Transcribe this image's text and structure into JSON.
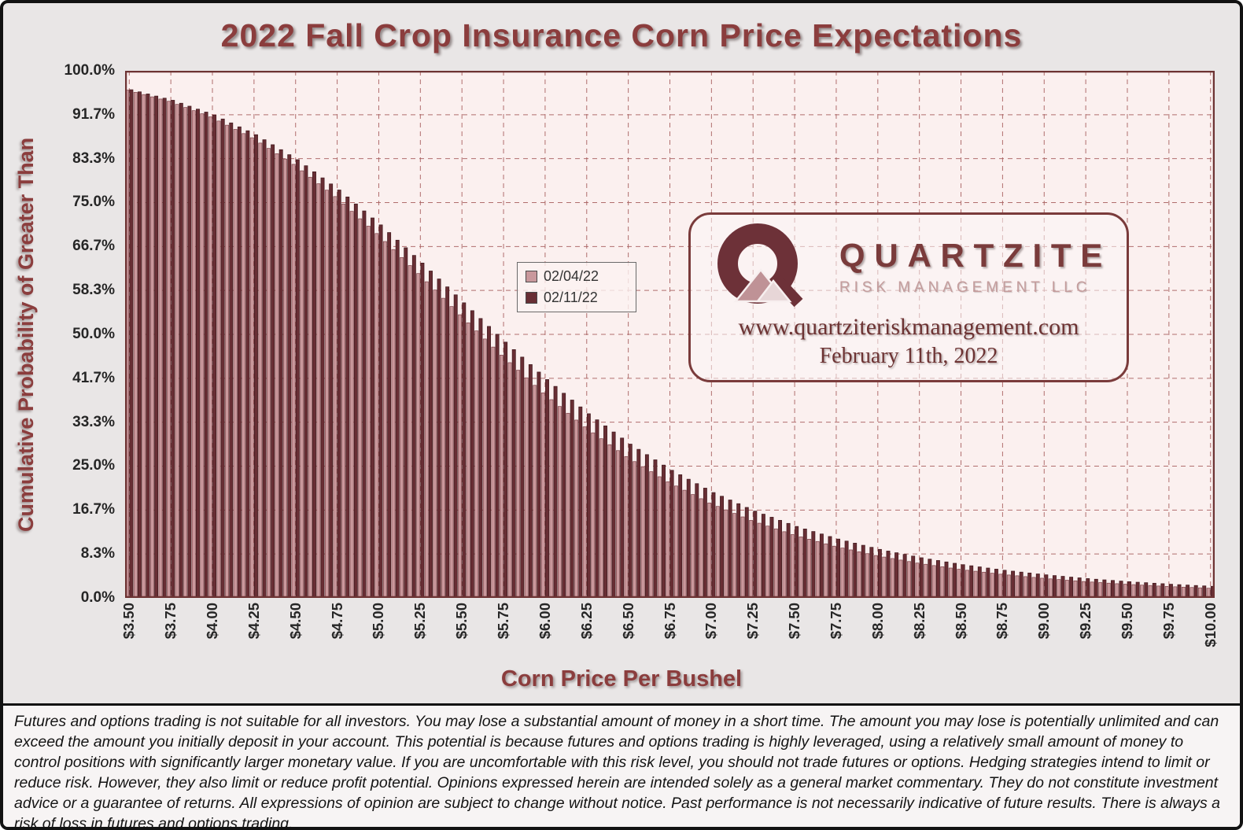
{
  "title": "2022 Fall Crop Insurance Corn Price Expectations",
  "y_axis_label": "Cumulative Probability of Greater Than",
  "x_axis_label": "Corn Price Per Bushel",
  "brand": {
    "name": "QUARTZITE",
    "subtitle": "RISK MANAGEMENT LLC",
    "website": "www.quartziteriskmanagement.com",
    "date": "February 11th, 2022"
  },
  "disclaimer": "Futures and options trading is not suitable for all investors. You may lose a substantial amount of money in a short time. The amount you may lose is potentially unlimited and can exceed the amount you initially deposit in your account. This potential is because futures and options trading is highly leveraged, using a relatively small amount of money to control positions with significantly larger monetary value. If you are uncomfortable with this risk level, you should not trade futures or options. Hedging strategies intend to limit or reduce risk. However, they also limit or reduce profit potential. Opinions expressed herein are intended solely as a general market commentary. They do not constitute investment advice or a guarantee of returns. All expressions of opinion are subject to change without notice. Past performance is not necessarily indicative of future results. There is always a risk of loss in futures and options trading.",
  "colors": {
    "maroon_accent": "#7a3b3b",
    "title_text": "#8b3d3d",
    "plot_background": "#fbf0ef",
    "gridline": "#a86060",
    "plot_border": "#6d3333",
    "frame_background": "#e9e6e6",
    "series_light": "#c9989c",
    "series_dark": "#682e34"
  },
  "chart_data": {
    "type": "bar",
    "title": "2022 Fall Crop Insurance Corn Price Expectations",
    "xlabel": "Corn Price Per Bushel",
    "ylabel": "Cumulative Probability of Greater Than",
    "ylim": [
      0,
      100
    ],
    "grid": "dashed, both axes",
    "legend_position": "inside plot, left of center",
    "x_start": 3.5,
    "x_step": 0.05,
    "x_end": 10.0,
    "x": [
      3.5,
      3.55,
      3.6,
      3.65,
      3.7,
      3.75,
      3.8,
      3.85,
      3.9,
      3.95,
      4,
      4.05,
      4.1,
      4.15,
      4.2,
      4.25,
      4.3,
      4.35,
      4.4,
      4.45,
      4.5,
      4.55,
      4.6,
      4.65,
      4.7,
      4.75,
      4.8,
      4.85,
      4.9,
      4.95,
      5,
      5.05,
      5.1,
      5.15,
      5.2,
      5.25,
      5.3,
      5.35,
      5.4,
      5.45,
      5.5,
      5.55,
      5.6,
      5.65,
      5.7,
      5.75,
      5.8,
      5.85,
      5.9,
      5.95,
      6,
      6.05,
      6.1,
      6.15,
      6.2,
      6.25,
      6.3,
      6.35,
      6.4,
      6.45,
      6.5,
      6.55,
      6.6,
      6.65,
      6.7,
      6.75,
      6.8,
      6.85,
      6.9,
      6.95,
      7,
      7.05,
      7.1,
      7.15,
      7.2,
      7.25,
      7.3,
      7.35,
      7.4,
      7.45,
      7.5,
      7.55,
      7.6,
      7.65,
      7.7,
      7.75,
      7.8,
      7.85,
      7.9,
      7.95,
      8,
      8.05,
      8.1,
      8.15,
      8.2,
      8.25,
      8.3,
      8.35,
      8.4,
      8.45,
      8.5,
      8.55,
      8.6,
      8.65,
      8.7,
      8.75,
      8.8,
      8.85,
      8.9,
      8.95,
      9,
      9.05,
      9.1,
      9.15,
      9.2,
      9.25,
      9.3,
      9.35,
      9.4,
      9.45,
      9.5,
      9.55,
      9.6,
      9.65,
      9.7,
      9.75,
      9.8,
      9.85,
      9.9,
      9.95,
      10
    ],
    "x_tick_labels": [
      "$3.50",
      "$3.75",
      "$4.00",
      "$4.25",
      "$4.50",
      "$4.75",
      "$5.00",
      "$5.25",
      "$5.50",
      "$5.75",
      "$6.00",
      "$6.25",
      "$6.50",
      "$6.75",
      "$7.00",
      "$7.25",
      "$7.50",
      "$7.75",
      "$8.00",
      "$8.25",
      "$8.50",
      "$8.75",
      "$9.00",
      "$9.25",
      "$9.50",
      "$9.75",
      "$10.00"
    ],
    "y_tick_labels": [
      "100.0%",
      "91.7%",
      "83.3%",
      "75.0%",
      "66.7%",
      "58.3%",
      "50.0%",
      "41.7%",
      "33.3%",
      "25.0%",
      "16.7%",
      "8.3%",
      "0.0%"
    ],
    "series": [
      {
        "name": "02/04/22",
        "color": "#c9989c",
        "edge_color": "#7d4046",
        "values": [
          96.33,
          95.91,
          95.49,
          95.06,
          94.64,
          94.22,
          93.63,
          93.04,
          92.44,
          91.85,
          91.26,
          90.47,
          89.68,
          88.88,
          88.09,
          87.3,
          86.29,
          85.28,
          84.27,
          83.26,
          82.25,
          81.03,
          79.81,
          78.58,
          77.36,
          76.14,
          74.74,
          73.34,
          71.93,
          70.53,
          69.13,
          67.61,
          66.09,
          64.58,
          63.06,
          61.54,
          59.98,
          58.41,
          56.85,
          55.28,
          53.72,
          52.19,
          50.66,
          49.12,
          47.59,
          46.06,
          44.63,
          43.2,
          41.76,
          40.33,
          38.9,
          37.61,
          36.32,
          35.03,
          33.74,
          32.45,
          31.32,
          30.2,
          29.07,
          27.95,
          26.82,
          25.86,
          24.9,
          23.95,
          22.99,
          22.03,
          21.23,
          20.43,
          19.62,
          18.82,
          18.02,
          17.36,
          16.7,
          16.03,
          15.37,
          14.71,
          14.17,
          13.63,
          13.1,
          12.56,
          12.02,
          11.58,
          11.14,
          10.7,
          10.26,
          9.82,
          9.46,
          9.11,
          8.75,
          8.4,
          8.04,
          7.75,
          7.47,
          7.18,
          6.9,
          6.61,
          6.38,
          6.14,
          5.91,
          5.67,
          5.44,
          5.25,
          5.06,
          4.88,
          4.69,
          4.5,
          4.35,
          4.2,
          4.04,
          3.89,
          3.74,
          3.61,
          3.49,
          3.36,
          3.24,
          3.11,
          3.01,
          2.91,
          2.8,
          2.7,
          2.6,
          2.52,
          2.43,
          2.35,
          2.26,
          2.18,
          2.11,
          2.04,
          1.98,
          1.91,
          1.84
        ]
      },
      {
        "name": "02/11/22",
        "color": "#682e34",
        "edge_color": "#3f181c",
        "values": [
          96.41,
          96.01,
          95.61,
          95.21,
          94.81,
          94.41,
          93.85,
          93.29,
          92.73,
          92.17,
          91.61,
          90.86,
          90.12,
          89.37,
          88.63,
          87.88,
          86.93,
          85.98,
          85.04,
          84.09,
          83.14,
          81.99,
          80.84,
          79.69,
          78.54,
          77.39,
          76.07,
          74.74,
          73.42,
          72.09,
          70.77,
          69.32,
          67.87,
          66.43,
          64.98,
          63.53,
          62.02,
          60.51,
          59.01,
          57.5,
          55.99,
          54.5,
          53.01,
          51.51,
          50.02,
          48.53,
          47.11,
          45.69,
          44.27,
          42.85,
          41.43,
          40.13,
          38.83,
          37.54,
          36.24,
          34.94,
          33.79,
          32.64,
          31.48,
          30.33,
          29.18,
          28.19,
          27.19,
          26.2,
          25.2,
          24.21,
          23.37,
          22.52,
          21.68,
          20.83,
          19.99,
          19.29,
          18.58,
          17.88,
          17.17,
          16.47,
          15.89,
          15.31,
          14.72,
          14.14,
          13.56,
          13.08,
          12.6,
          12.13,
          11.65,
          11.17,
          10.78,
          10.39,
          9.99,
          9.6,
          9.21,
          8.89,
          8.57,
          8.26,
          7.94,
          7.62,
          7.36,
          7.1,
          6.83,
          6.57,
          6.31,
          6.1,
          5.89,
          5.67,
          5.46,
          5.25,
          5.08,
          4.9,
          4.73,
          4.55,
          4.38,
          4.24,
          4.1,
          3.95,
          3.81,
          3.67,
          3.55,
          3.43,
          3.32,
          3.2,
          3.08,
          2.98,
          2.89,
          2.79,
          2.7,
          2.6,
          2.52,
          2.44,
          2.36,
          2.28,
          2.2
        ]
      }
    ]
  }
}
